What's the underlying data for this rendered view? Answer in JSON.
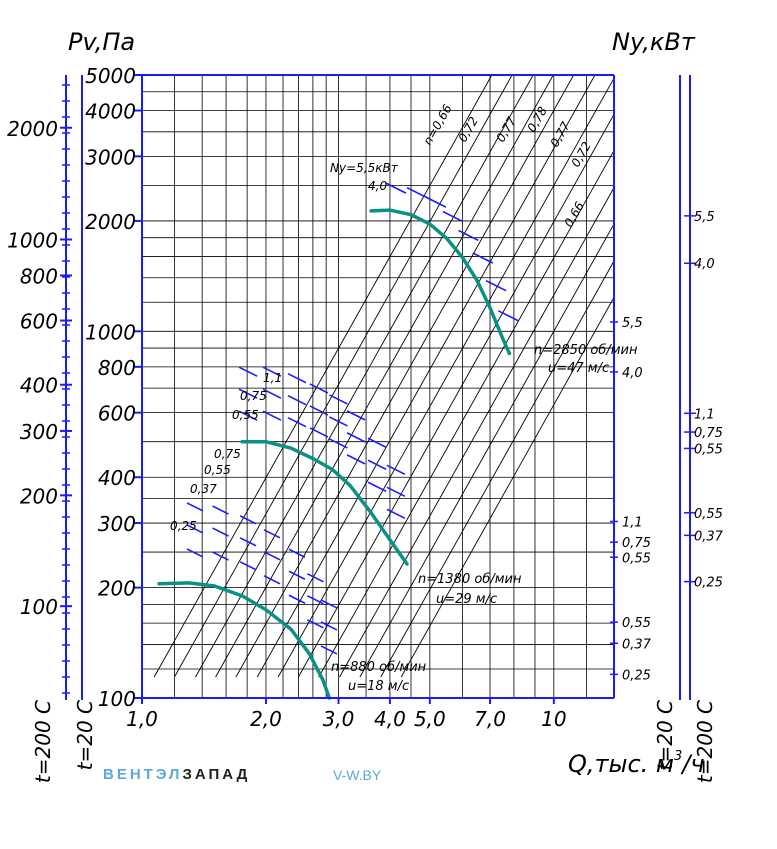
{
  "chart_data": {
    "type": "line",
    "title": "",
    "y_left_title": "Pv,Па",
    "y_right_title": "Ny,кВт",
    "x_title_prefix": "Q,тыс. м",
    "x_title_sup": "3",
    "x_title_suffix": "/ч",
    "x_scale": "log",
    "y_scale": "log",
    "xlim": [
      1.0,
      14.0
    ],
    "ylim": [
      100,
      5000
    ],
    "x_ticks": [
      {
        "v": 1.0,
        "label": "1,0"
      },
      {
        "v": 2.0,
        "label": "2,0"
      },
      {
        "v": 3.0,
        "label": "3,0"
      },
      {
        "v": 4.0,
        "label": "4,0"
      },
      {
        "v": 5.0,
        "label": "5,0"
      },
      {
        "v": 7.0,
        "label": "7,0"
      },
      {
        "v": 10.0,
        "label": "10"
      }
    ],
    "y_ticks": [
      {
        "v": 100,
        "label": "100"
      },
      {
        "v": 200,
        "label": "200"
      },
      {
        "v": 300,
        "label": "300"
      },
      {
        "v": 400,
        "label": "400"
      },
      {
        "v": 600,
        "label": "600"
      },
      {
        "v": 800,
        "label": "800"
      },
      {
        "v": 1000,
        "label": "1000"
      },
      {
        "v": 2000,
        "label": "2000"
      },
      {
        "v": 3000,
        "label": "3000"
      },
      {
        "v": 4000,
        "label": "4000"
      },
      {
        "v": 5000,
        "label": "5000"
      }
    ],
    "left_scale_labels": {
      "t20": "t=20 С",
      "t200": "t=200 С",
      "ticks": [
        {
          "label": "2000",
          "pv": 3590
        },
        {
          "label": "1000",
          "pv": 1780
        },
        {
          "label": "800",
          "pv": 1420
        },
        {
          "label": "600",
          "pv": 1070
        },
        {
          "label": "400",
          "pv": 715
        },
        {
          "label": "300",
          "pv": 535
        },
        {
          "label": "200",
          "pv": 357
        },
        {
          "label": "100",
          "pv": 178
        }
      ]
    },
    "right_scale_labels": {
      "t20": "t=20 С",
      "t200": "t=200 С",
      "t20_ticks": [
        {
          "label": "5,5",
          "pv": 1060
        },
        {
          "label": "4,0",
          "pv": 775
        },
        {
          "label": "1,1",
          "pv": 303
        },
        {
          "label": "0,75",
          "pv": 266
        },
        {
          "label": "0,55",
          "pv": 242
        },
        {
          "label": "0,55",
          "pv": 161
        },
        {
          "label": "0,37",
          "pv": 141
        },
        {
          "label": "0,25",
          "pv": 116
        }
      ],
      "t200_ticks": [
        {
          "label": "5,5",
          "pv": 1710
        },
        {
          "label": "4,0",
          "pv": 1270
        },
        {
          "label": "1,1",
          "pv": 495
        },
        {
          "label": "0,75",
          "pv": 440
        },
        {
          "label": "0,55",
          "pv": 397
        },
        {
          "label": "0,55",
          "pv": 265
        },
        {
          "label": "0,37",
          "pv": 230
        },
        {
          "label": "0,25",
          "pv": 172
        }
      ]
    },
    "series": [
      {
        "name": "n=2850 об/мин",
        "label2": "u=47 м/с",
        "color": "#0a9185",
        "points": [
          [
            3.6,
            2130
          ],
          [
            4.0,
            2140
          ],
          [
            4.5,
            2080
          ],
          [
            5.0,
            1960
          ],
          [
            5.5,
            1790
          ],
          [
            6.0,
            1590
          ],
          [
            6.5,
            1380
          ],
          [
            7.0,
            1160
          ],
          [
            7.5,
            960
          ],
          [
            7.8,
            870
          ]
        ]
      },
      {
        "name": "n=1380 об/мин",
        "label2": "u=29 м/с",
        "color": "#0a9185",
        "points": [
          [
            1.75,
            500
          ],
          [
            2.0,
            500
          ],
          [
            2.3,
            480
          ],
          [
            2.6,
            450
          ],
          [
            2.9,
            420
          ],
          [
            3.2,
            380
          ],
          [
            3.6,
            320
          ],
          [
            4.0,
            270
          ],
          [
            4.4,
            232
          ]
        ]
      },
      {
        "name": "n=880 об/мин",
        "label2": "u=18 м/с",
        "color": "#0a9185",
        "points": [
          [
            1.1,
            205
          ],
          [
            1.3,
            206
          ],
          [
            1.5,
            202
          ],
          [
            1.75,
            190
          ],
          [
            2.0,
            174
          ],
          [
            2.3,
            154
          ],
          [
            2.55,
            132
          ],
          [
            2.75,
            112
          ],
          [
            2.85,
            100
          ]
        ]
      }
    ],
    "efficiency_lines": [
      {
        "label": "n=0,66"
      },
      {
        "label": "0,72"
      },
      {
        "label": "0,77"
      },
      {
        "label": "0,78"
      },
      {
        "label": "0,77"
      },
      {
        "label": "0,72"
      },
      {
        "label": "0,66"
      }
    ],
    "power_labels_top": {
      "ny": "Ny=5,5кВт",
      "second": "4,0"
    },
    "power_labels_mid": [
      "1,1",
      "0,75",
      "0,55"
    ],
    "power_labels_low": [
      "0,75",
      "0,55",
      "0,37",
      "0,25"
    ],
    "grid": true,
    "colors": {
      "axis": "#1a1aff",
      "curve": "#0a9185",
      "power": "#1a1aff",
      "grid": "#000000"
    }
  },
  "brand": {
    "part1": "ВЕНТЭЛ",
    "part2": "ЗАПАД",
    "site": "V-W.BY"
  }
}
